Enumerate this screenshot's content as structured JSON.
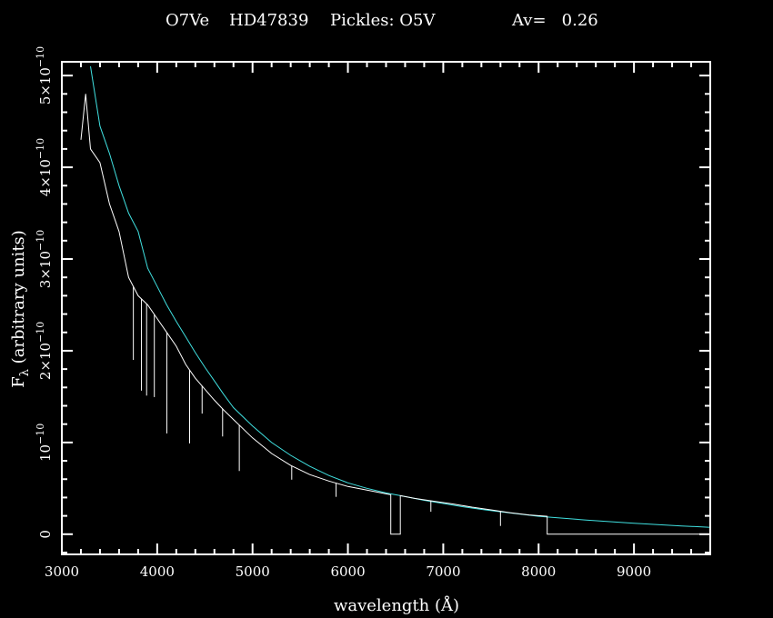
{
  "chart_data": {
    "type": "line",
    "title_parts": {
      "object": "O7Ve",
      "star": "HD47839",
      "pickles": "Pickles: O5V",
      "av": "Av=   0.26"
    },
    "xlabel": "wavelength (Å)",
    "ylabel": "F",
    "ylabel_sub": "λ",
    "ylabel_rest": " (arbitrary units)",
    "xlim": [
      3000,
      9800
    ],
    "ylim": [
      -2.2e-11,
      5.15e-10
    ],
    "x_ticks": [
      3000,
      4000,
      5000,
      6000,
      7000,
      8000,
      9000
    ],
    "x_tick_labels": [
      "3000",
      "4000",
      "5000",
      "6000",
      "7000",
      "8000",
      "9000"
    ],
    "y_ticks": [
      0,
      1e-10,
      2e-10,
      3e-10,
      4e-10,
      5e-10
    ],
    "y_tick_labels": [
      {
        "mantissa": "0",
        "exp": ""
      },
      {
        "mantissa": "10",
        "exp": "−10"
      },
      {
        "mantissa": "2×10",
        "exp": "−10"
      },
      {
        "mantissa": "3×10",
        "exp": "−10"
      },
      {
        "mantissa": "4×10",
        "exp": "−10"
      },
      {
        "mantissa": "5×10",
        "exp": "−10"
      }
    ],
    "grid": false,
    "series": [
      {
        "color": "#40e0e0",
        "x": [
          3300,
          3400,
          3500,
          3600,
          3700,
          3800,
          3900,
          4000,
          4100,
          4200,
          4300,
          4400,
          4500,
          4600,
          4700,
          4800,
          4900,
          5000,
          5200,
          5400,
          5600,
          5800,
          6000,
          6200,
          6400,
          6600,
          6800,
          7000,
          7200,
          7400,
          7600,
          7800,
          8000,
          8500,
          9000,
          9500,
          9800
        ],
        "y": [
          5.1e-10,
          4.45e-10,
          4.15e-10,
          3.8e-10,
          3.5e-10,
          3.3e-10,
          2.9e-10,
          2.7e-10,
          2.5e-10,
          2.32e-10,
          2.15e-10,
          1.98e-10,
          1.82e-10,
          1.67e-10,
          1.52e-10,
          1.38e-10,
          1.28e-10,
          1.18e-10,
          1e-10,
          8.6e-11,
          7.4e-11,
          6.4e-11,
          5.6e-11,
          5e-11,
          4.5e-11,
          4.1e-11,
          3.7e-11,
          3.35e-11,
          3e-11,
          2.7e-11,
          2.45e-11,
          2.2e-11,
          1.95e-11,
          1.55e-11,
          1.2e-11,
          9e-12,
          7.5e-12
        ]
      },
      {
        "color": "#ffffff",
        "x": [
          3200,
          3250,
          3300,
          3400,
          3500,
          3600,
          3700,
          3800,
          3900,
          4000,
          4100,
          4200,
          4300,
          4400,
          4500,
          4600,
          4700,
          4800,
          4900,
          5000,
          5200,
          5400,
          5600,
          5800,
          6000,
          6200,
          6400,
          6450,
          6450,
          6550,
          6550,
          6700,
          6900,
          7100,
          7300,
          7500,
          7700,
          7900,
          8090,
          8090,
          9800
        ],
        "y": [
          4.3e-10,
          4.8e-10,
          4.2e-10,
          4.05e-10,
          3.6e-10,
          3.3e-10,
          2.8e-10,
          2.6e-10,
          2.5e-10,
          2.35e-10,
          2.2e-10,
          2.05e-10,
          1.85e-10,
          1.7e-10,
          1.58e-10,
          1.46e-10,
          1.35e-10,
          1.25e-10,
          1.15e-10,
          1.05e-10,
          8.8e-11,
          7.5e-11,
          6.5e-11,
          5.8e-11,
          5.2e-11,
          4.8e-11,
          4.4e-11,
          4.3e-11,
          0,
          0,
          4.2e-11,
          3.9e-11,
          3.6e-11,
          3.3e-11,
          2.95e-11,
          2.65e-11,
          2.35e-11,
          2.1e-11,
          1.95e-11,
          0,
          0
        ]
      }
    ],
    "absorption_lines": [
      {
        "x": 3750,
        "depth": 8e-11
      },
      {
        "x": 3835,
        "depth": 1e-10
      },
      {
        "x": 3889,
        "depth": 1e-10
      },
      {
        "x": 3970,
        "depth": 9e-11
      },
      {
        "x": 4101,
        "depth": 1.1e-10
      },
      {
        "x": 4340,
        "depth": 8e-11
      },
      {
        "x": 4471,
        "depth": 3e-11
      },
      {
        "x": 4686,
        "depth": 3e-11
      },
      {
        "x": 4861,
        "depth": 5e-11
      },
      {
        "x": 5411,
        "depth": 1.5e-11
      },
      {
        "x": 5876,
        "depth": 1.5e-11
      },
      {
        "x": 6870,
        "depth": 1.2e-11
      },
      {
        "x": 7600,
        "depth": 1.6e-11
      }
    ]
  }
}
